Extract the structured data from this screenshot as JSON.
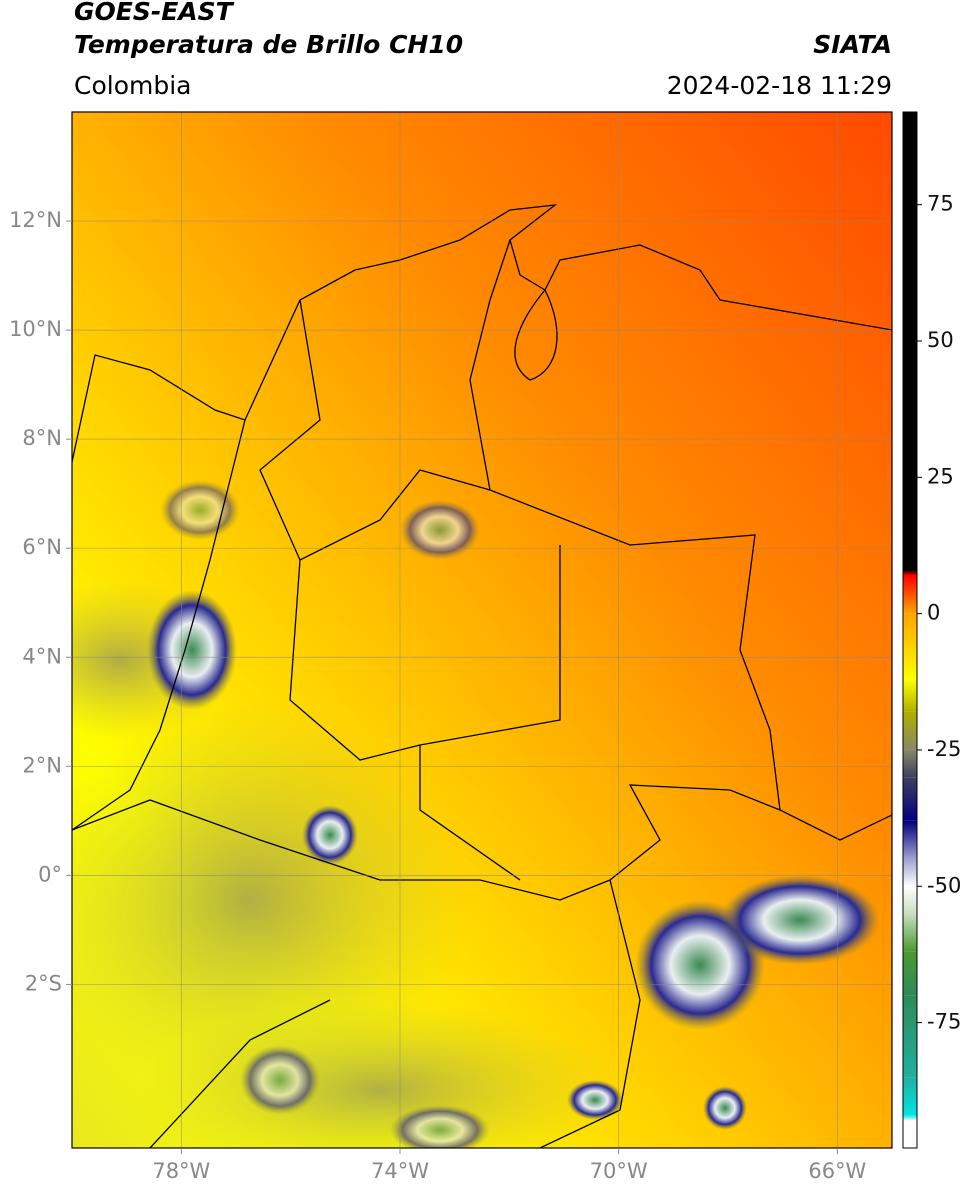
{
  "chart_data": {
    "type": "map",
    "title": "GOES-EAST",
    "subtitle": "Temperatura de Brillo CH10",
    "source": "SIATA",
    "region": "Colombia",
    "timestamp": "2024-02-18 11:29",
    "xlim": [
      -80,
      -65
    ],
    "ylim": [
      -5,
      14
    ],
    "xticks": [
      {
        "value": -78,
        "label": "78°W"
      },
      {
        "value": -74,
        "label": "74°W"
      },
      {
        "value": -70,
        "label": "70°W"
      },
      {
        "value": -66,
        "label": "66°W"
      }
    ],
    "yticks": [
      {
        "value": 12,
        "label": "12°N"
      },
      {
        "value": 10,
        "label": "10°N"
      },
      {
        "value": 8,
        "label": "8°N"
      },
      {
        "value": 6,
        "label": "6°N"
      },
      {
        "value": 4,
        "label": "4°N"
      },
      {
        "value": 2,
        "label": "2°N"
      },
      {
        "value": 0,
        "label": "0°"
      },
      {
        "value": -2,
        "label": "2°S"
      }
    ],
    "grid": true,
    "colorbar": {
      "lim": [
        -98,
        92
      ],
      "ticks": [
        75,
        50,
        25,
        0,
        -25,
        -50,
        -75
      ],
      "colors": [
        {
          "value": -98,
          "color": "#ffffff"
        },
        {
          "value": -93,
          "color": "#ffffff"
        },
        {
          "value": -92,
          "color": "#00e5e5"
        },
        {
          "value": -85,
          "color": "#20b0a0"
        },
        {
          "value": -70,
          "color": "#2e8b57"
        },
        {
          "value": -62,
          "color": "#4a9a30"
        },
        {
          "value": -55,
          "color": "#c8e0c0"
        },
        {
          "value": -50,
          "color": "#ffffff"
        },
        {
          "value": -45,
          "color": "#a0a0d0"
        },
        {
          "value": -38,
          "color": "#000080"
        },
        {
          "value": -30,
          "color": "#404060"
        },
        {
          "value": -25,
          "color": "#888866"
        },
        {
          "value": -18,
          "color": "#b0b000"
        },
        {
          "value": -12,
          "color": "#ffff00"
        },
        {
          "value": 0,
          "color": "#ffa500"
        },
        {
          "value": 7,
          "color": "#ff0000"
        },
        {
          "value": 8,
          "color": "#000000"
        },
        {
          "value": 92,
          "color": "#000000"
        }
      ]
    }
  }
}
